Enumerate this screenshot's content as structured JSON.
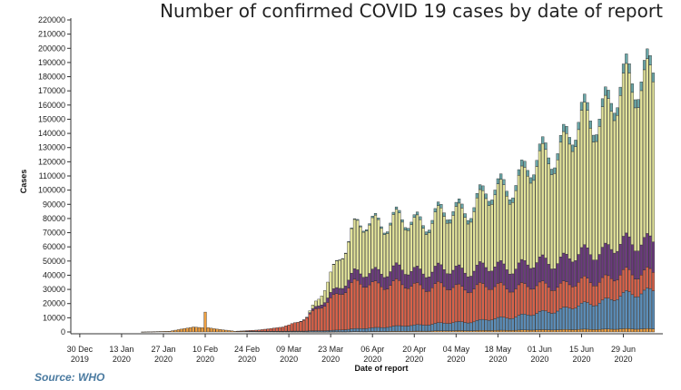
{
  "source_note": "Source: WHO",
  "chart_data": {
    "type": "bar",
    "stacked": true,
    "title": "Number of confirmed COVID 19 cases by date of report",
    "xlabel": "Date of report",
    "ylabel": "Cases",
    "ylim": [
      0,
      220000
    ],
    "y_ticks": [
      0,
      10000,
      20000,
      30000,
      40000,
      50000,
      60000,
      70000,
      80000,
      90000,
      100000,
      110000,
      120000,
      130000,
      140000,
      150000,
      160000,
      170000,
      180000,
      190000,
      200000,
      210000,
      220000
    ],
    "x_tick_labels": [
      {
        "day": 0,
        "lines": [
          "30 Dec",
          "2019"
        ]
      },
      {
        "day": 14,
        "lines": [
          "13 Jan",
          "2020"
        ]
      },
      {
        "day": 28,
        "lines": [
          "27 Jan",
          "2020"
        ]
      },
      {
        "day": 42,
        "lines": [
          "10 Feb",
          "2020"
        ]
      },
      {
        "day": 56,
        "lines": [
          "24 Feb",
          "2020"
        ]
      },
      {
        "day": 70,
        "lines": [
          "09 Mar",
          "2020"
        ]
      },
      {
        "day": 84,
        "lines": [
          "23 Mar",
          "2020"
        ]
      },
      {
        "day": 98,
        "lines": [
          "06 Apr",
          "2020"
        ]
      },
      {
        "day": 112,
        "lines": [
          "20 Apr",
          "2020"
        ]
      },
      {
        "day": 126,
        "lines": [
          "04 May",
          "2020"
        ]
      },
      {
        "day": 140,
        "lines": [
          "18 May",
          "2020"
        ]
      },
      {
        "day": 154,
        "lines": [
          "01 Jun",
          "2020"
        ]
      },
      {
        "day": 168,
        "lines": [
          "15 Jun",
          "2020"
        ]
      },
      {
        "day": 182,
        "lines": [
          "29 Jun",
          "2020"
        ]
      }
    ],
    "day_range": [
      -3,
      194
    ],
    "grid": false,
    "legend": "none",
    "series_colors": [
      "#f0a040",
      "#5b8db8",
      "#d9624a",
      "#6b3a7d",
      "#e2e39a",
      "#6aa7a8"
    ],
    "keyframes": {
      "days": [
        0,
        10,
        20,
        30,
        38,
        41,
        42,
        43,
        46,
        52,
        60,
        68,
        73,
        76,
        80,
        84,
        88,
        92,
        96,
        100,
        104,
        108,
        112,
        116,
        120,
        124,
        128,
        132,
        136,
        140,
        144,
        148,
        152,
        156,
        160,
        164,
        168,
        172,
        176,
        180,
        184,
        186,
        188,
        190,
        192
      ],
      "series": [
        [
          0,
          0,
          0,
          500,
          3500,
          3000,
          14000,
          3000,
          2000,
          500,
          300,
          200,
          200,
          100,
          100,
          100,
          200,
          300,
          300,
          400,
          500,
          500,
          600,
          700,
          800,
          900,
          1000,
          1000,
          1100,
          1200,
          1300,
          1400,
          1500,
          1600,
          1700,
          1800,
          1900,
          2000,
          2100,
          2200,
          2300,
          2300,
          2400,
          2400,
          2400
        ],
        [
          0,
          0,
          0,
          0,
          0,
          0,
          0,
          0,
          0,
          0,
          100,
          300,
          500,
          600,
          800,
          1000,
          1500,
          2000,
          2500,
          3000,
          3500,
          4000,
          4500,
          5000,
          5500,
          6000,
          6500,
          7000,
          8000,
          9000,
          10000,
          11000,
          12000,
          13500,
          15000,
          16500,
          18000,
          20000,
          22000,
          24000,
          26000,
          27000,
          28000,
          29000,
          30000
        ],
        [
          0,
          0,
          0,
          0,
          0,
          0,
          0,
          0,
          0,
          0,
          1000,
          3000,
          7000,
          10000,
          17000,
          24000,
          30000,
          33000,
          34000,
          33000,
          32000,
          31000,
          30000,
          29000,
          28000,
          27000,
          26000,
          26000,
          25000,
          24000,
          23000,
          22000,
          21000,
          20000,
          19000,
          18000,
          17500,
          17000,
          16500,
          16000,
          15500,
          15000,
          15000,
          15000,
          14500
        ],
        [
          0,
          0,
          0,
          0,
          0,
          0,
          0,
          0,
          0,
          0,
          0,
          0,
          0,
          500,
          2000,
          4000,
          5000,
          7000,
          8500,
          10000,
          10500,
          11000,
          11500,
          12000,
          12500,
          13000,
          13500,
          14000,
          14500,
          15000,
          15500,
          16000,
          17000,
          18000,
          19000,
          20000,
          21000,
          22000,
          22500,
          23000,
          23000,
          23500,
          24000,
          24000,
          24000
        ],
        [
          0,
          0,
          0,
          0,
          0,
          0,
          0,
          0,
          0,
          0,
          0,
          0,
          0,
          0,
          5000,
          15000,
          25000,
          33000,
          38000,
          37000,
          36000,
          36000,
          36000,
          37000,
          39000,
          41000,
          44000,
          47000,
          52000,
          55000,
          60000,
          65000,
          70000,
          78000,
          83000,
          88000,
          95000,
          100000,
          105000,
          110000,
          115000,
          120000,
          123000,
          125000,
          126000
        ],
        [
          0,
          0,
          0,
          0,
          0,
          0,
          0,
          0,
          0,
          0,
          0,
          0,
          0,
          0,
          0,
          0,
          300,
          500,
          1000,
          1300,
          1500,
          1800,
          2000,
          2300,
          2500,
          2800,
          3000,
          3200,
          3500,
          3700,
          4000,
          4200,
          4500,
          4800,
          5000,
          5200,
          5500,
          5800,
          6000,
          6200,
          6500,
          6800,
          7000,
          7000,
          7000
        ]
      ]
    }
  }
}
